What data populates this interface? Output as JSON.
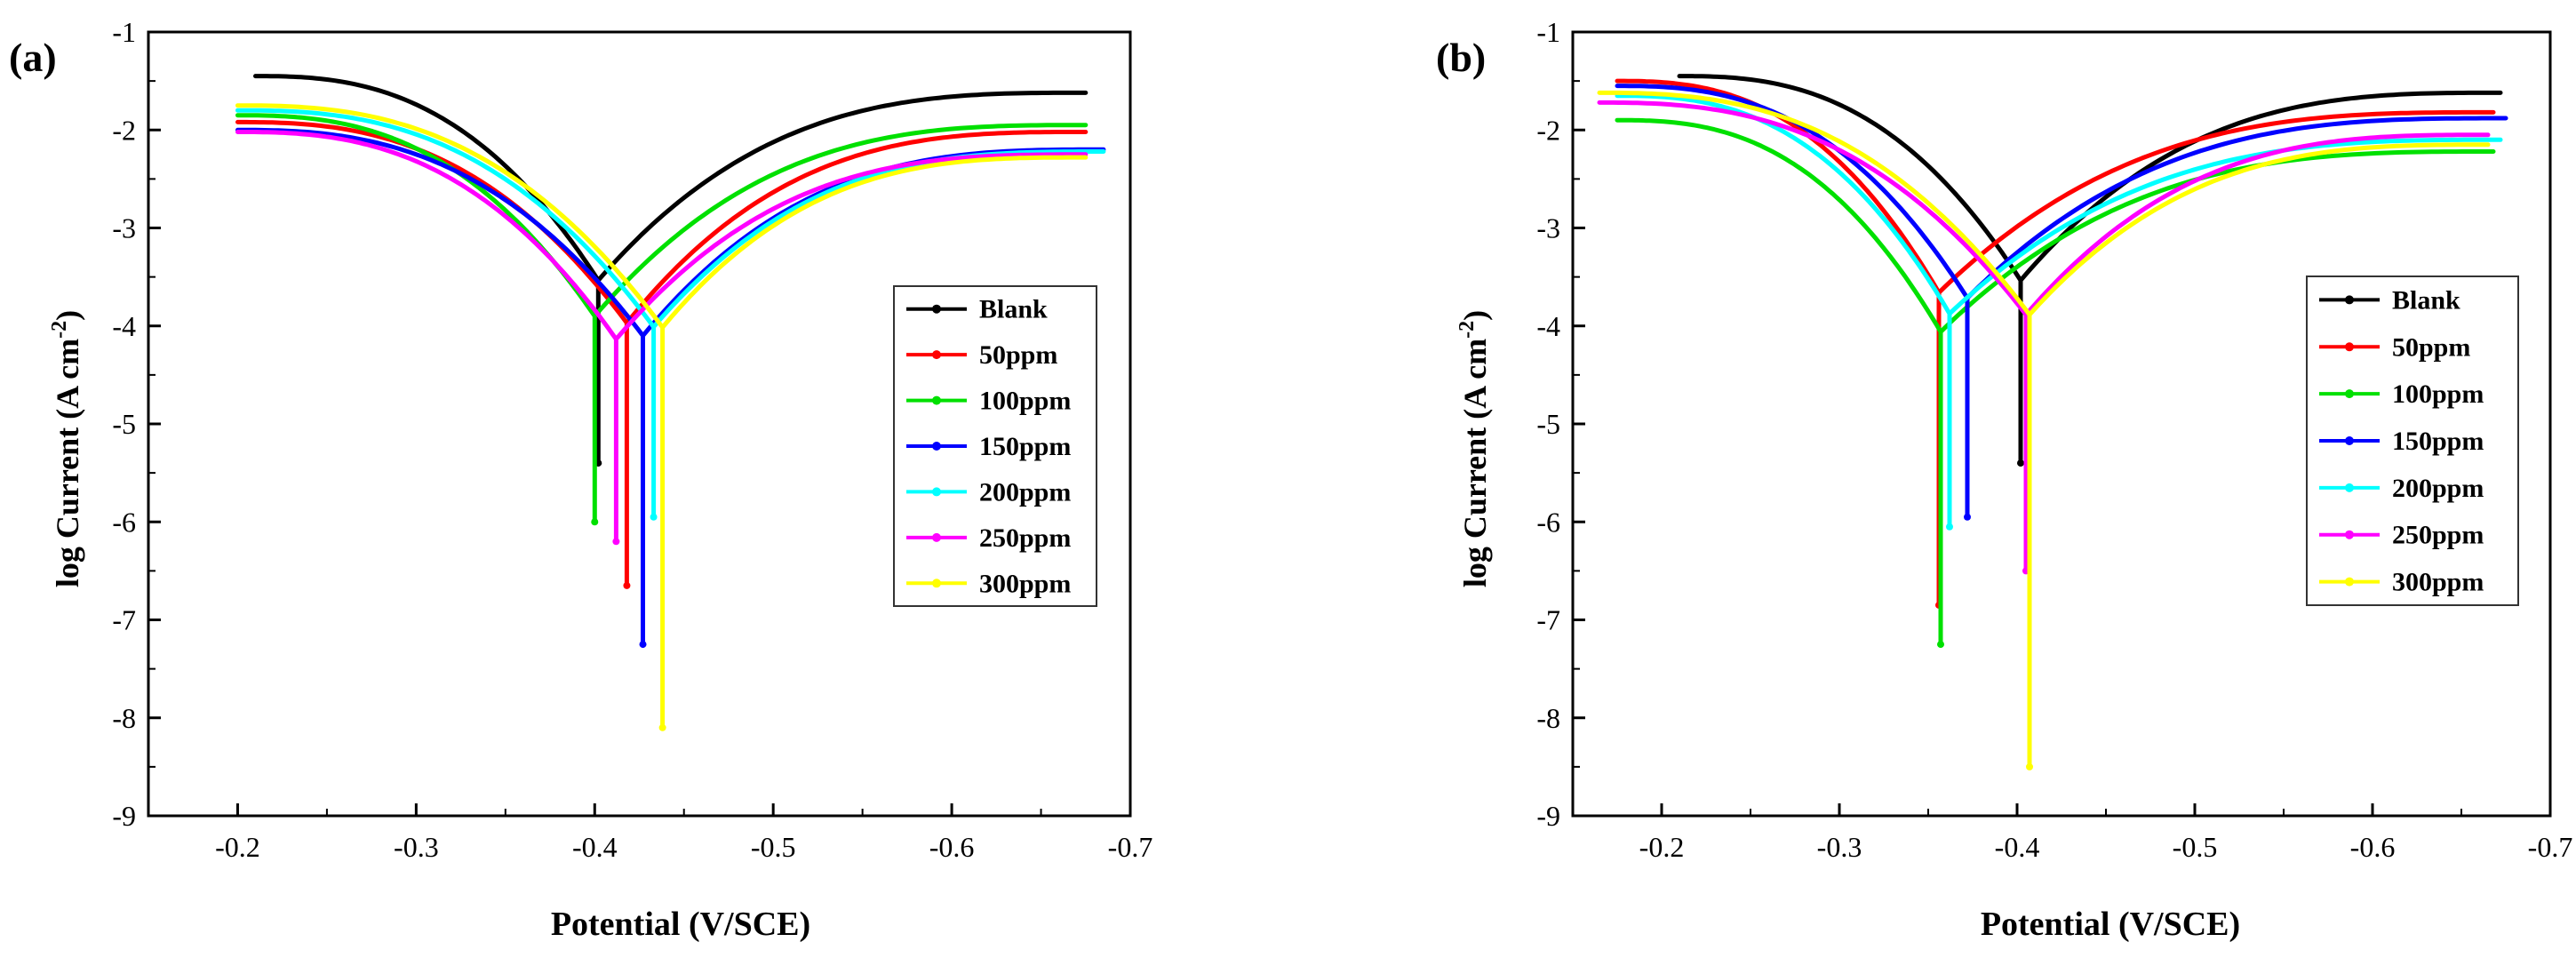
{
  "chart_data": [
    {
      "panel_label": "(a)",
      "type": "line",
      "xlabel": "Potential (V/SCE)",
      "ylabel": "log Current (A cm",
      "ylabel_sup": "-2",
      "ylabel_close": ")",
      "xlim": [
        -0.15,
        -0.7
      ],
      "ylim": [
        -9,
        -1
      ],
      "x_ticks": [
        -0.2,
        -0.3,
        -0.4,
        -0.5,
        -0.6,
        -0.7
      ],
      "y_ticks": [
        -9,
        -8,
        -7,
        -6,
        -5,
        -4,
        -3,
        -2,
        -1
      ],
      "x_tick_labels": [
        "-0.2",
        "-0.3",
        "-0.4",
        "-0.5",
        "-0.6",
        "-0.7"
      ],
      "y_tick_labels": [
        "-9",
        "-8",
        "-7",
        "-6",
        "-5",
        "-4",
        "-3",
        "-2",
        "-1"
      ],
      "series": [
        {
          "name": "Blank",
          "color": "#000000",
          "x_start": -0.21,
          "y_start": -1.45,
          "ecorr": -0.402,
          "y_corr": -5.4,
          "x_end": -0.675,
          "y_end": -1.62
        },
        {
          "name": "50ppm",
          "color": "#ff0000",
          "x_start": -0.2,
          "y_start": -1.92,
          "ecorr": -0.418,
          "y_corr": -6.65,
          "x_end": -0.675,
          "y_end": -2.02
        },
        {
          "name": "100ppm",
          "color": "#00e000",
          "x_start": -0.2,
          "y_start": -1.85,
          "ecorr": -0.4,
          "y_corr": -6.0,
          "x_end": -0.675,
          "y_end": -1.95
        },
        {
          "name": "150ppm",
          "color": "#0000ff",
          "x_start": -0.2,
          "y_start": -2.0,
          "ecorr": -0.427,
          "y_corr": -7.25,
          "x_end": -0.685,
          "y_end": -2.2
        },
        {
          "name": "200ppm",
          "color": "#00ffff",
          "x_start": -0.2,
          "y_start": -1.8,
          "ecorr": -0.433,
          "y_corr": -5.95,
          "x_end": -0.685,
          "y_end": -2.22
        },
        {
          "name": "250ppm",
          "color": "#ff00ff",
          "x_start": -0.2,
          "y_start": -2.02,
          "ecorr": -0.412,
          "y_corr": -6.2,
          "x_end": -0.675,
          "y_end": -2.25
        },
        {
          "name": "300ppm",
          "color": "#ffff00",
          "x_start": -0.2,
          "y_start": -1.75,
          "ecorr": -0.438,
          "y_corr": -8.1,
          "x_end": -0.675,
          "y_end": -2.28
        }
      ],
      "legend": "center-right"
    },
    {
      "panel_label": "(b)",
      "type": "line",
      "xlabel": "Potential (V/SCE)",
      "ylabel": "log Current (A cm",
      "ylabel_sup": "-2",
      "ylabel_close": ")",
      "xlim": [
        -0.15,
        -0.7
      ],
      "ylim": [
        -9,
        -1
      ],
      "x_ticks": [
        -0.2,
        -0.3,
        -0.4,
        -0.5,
        -0.6,
        -0.7
      ],
      "y_ticks": [
        -9,
        -8,
        -7,
        -6,
        -5,
        -4,
        -3,
        -2,
        -1
      ],
      "x_tick_labels": [
        "-0.2",
        "-0.3",
        "-0.4",
        "-0.5",
        "-0.6",
        "-0.7"
      ],
      "y_tick_labels": [
        "-9",
        "-8",
        "-7",
        "-6",
        "-5",
        "-4",
        "-3",
        "-2",
        "-1"
      ],
      "series": [
        {
          "name": "Blank",
          "color": "#000000",
          "x_start": -0.21,
          "y_start": -1.45,
          "ecorr": -0.402,
          "y_corr": -5.4,
          "x_end": -0.672,
          "y_end": -1.62
        },
        {
          "name": "50ppm",
          "color": "#ff0000",
          "x_start": -0.175,
          "y_start": -1.5,
          "ecorr": -0.356,
          "y_corr": -6.85,
          "x_end": -0.668,
          "y_end": -1.82
        },
        {
          "name": "100ppm",
          "color": "#00e000",
          "x_start": -0.175,
          "y_start": -1.9,
          "ecorr": -0.357,
          "y_corr": -7.25,
          "x_end": -0.668,
          "y_end": -2.22
        },
        {
          "name": "150ppm",
          "color": "#0000ff",
          "x_start": -0.175,
          "y_start": -1.55,
          "ecorr": -0.372,
          "y_corr": -5.95,
          "x_end": -0.675,
          "y_end": -1.88
        },
        {
          "name": "200ppm",
          "color": "#00ffff",
          "x_start": -0.175,
          "y_start": -1.65,
          "ecorr": -0.362,
          "y_corr": -6.05,
          "x_end": -0.672,
          "y_end": -2.1
        },
        {
          "name": "250ppm",
          "color": "#ff00ff",
          "x_start": -0.165,
          "y_start": -1.72,
          "ecorr": -0.405,
          "y_corr": -6.5,
          "x_end": -0.665,
          "y_end": -2.05
        },
        {
          "name": "300ppm",
          "color": "#ffff00",
          "x_start": -0.165,
          "y_start": -1.62,
          "ecorr": -0.407,
          "y_corr": -8.5,
          "x_end": -0.665,
          "y_end": -2.15
        }
      ],
      "legend": "center-right"
    }
  ]
}
